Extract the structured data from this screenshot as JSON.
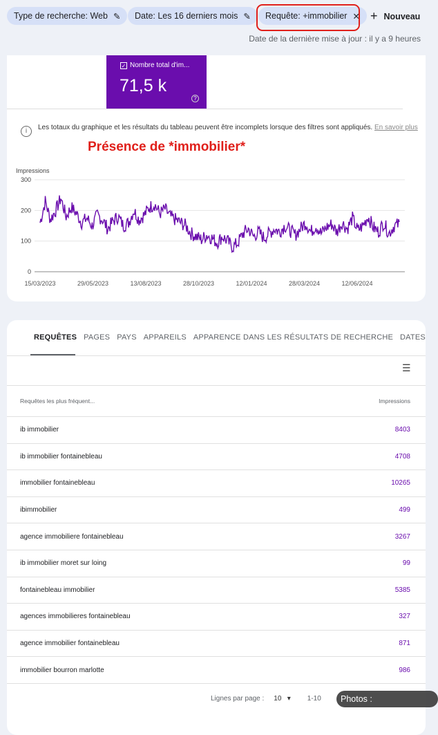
{
  "filters": [
    {
      "label": "Type de recherche: Web"
    },
    {
      "label": "Date: Les 16 derniers mois"
    },
    {
      "label": "Requête: +immobilier"
    }
  ],
  "new_label": "Nouveau",
  "last_update": "Date de la dernière mise à jour : il y a 9 heures",
  "metric": {
    "label": "Nombre total d'im...",
    "value": "71,5 k"
  },
  "notice": {
    "text": "Les totaux du graphique et les résultats du tableau peuvent être incomplets lorsque des filtres sont appliqués.",
    "link": "En savoir plus"
  },
  "annotation": "Présence de *immobilier*",
  "chart_data": {
    "type": "line",
    "ylabel": "Impressions",
    "ylim": [
      0,
      300
    ],
    "yticks": [
      "0",
      "100",
      "200",
      "300"
    ],
    "xticks": [
      "15/03/2023",
      "29/05/2023",
      "13/08/2023",
      "28/10/2023",
      "12/01/2024",
      "28/03/2024",
      "12/06/2024"
    ],
    "x_start": "15/03/2023",
    "x_step_days": 7,
    "color": "#6a0dad",
    "values": [
      160,
      230,
      170,
      200,
      240,
      180,
      210,
      190,
      160,
      175,
      150,
      185,
      170,
      140,
      165,
      180,
      150,
      160,
      200,
      170,
      185,
      210,
      220,
      190,
      205,
      180,
      170,
      160,
      150,
      125,
      115,
      105,
      120,
      110,
      95,
      115,
      100,
      80,
      95,
      125,
      140,
      115,
      130,
      110,
      125,
      140,
      130,
      150,
      135,
      120,
      140,
      160,
      130,
      150,
      125,
      145,
      155,
      130,
      160,
      140,
      175,
      135,
      150,
      180,
      145,
      130,
      160,
      125,
      150,
      155
    ]
  },
  "tabs": [
    "REQUÊTES",
    "PAGES",
    "PAYS",
    "APPAREILS",
    "APPARENCE DANS LES RÉSULTATS DE RECHERCHE",
    "DATES"
  ],
  "table": {
    "col1": "Requêtes les plus fréquent...",
    "col2": "Impressions",
    "rows": [
      {
        "q": "ib immobilier",
        "v": "8403"
      },
      {
        "q": "ib immobilier fontainebleau",
        "v": "4708"
      },
      {
        "q": "immobilier fontainebleau",
        "v": "10265"
      },
      {
        "q": "ibimmobilier",
        "v": "499"
      },
      {
        "q": "agence immobiliere fontainebleau",
        "v": "3267"
      },
      {
        "q": "ib immobilier moret sur loing",
        "v": "99"
      },
      {
        "q": "fontainebleau immobilier",
        "v": "5385"
      },
      {
        "q": "agences immobilieres fontainebleau",
        "v": "327"
      },
      {
        "q": "agence immobilier fontainebleau",
        "v": "871"
      },
      {
        "q": "immobilier bourron marlotte",
        "v": "986"
      }
    ]
  },
  "pagination": {
    "label": "Lignes par page :",
    "value": "10",
    "range": "1-10"
  },
  "watermark": "Photos : Pierre@Alouit.fr"
}
